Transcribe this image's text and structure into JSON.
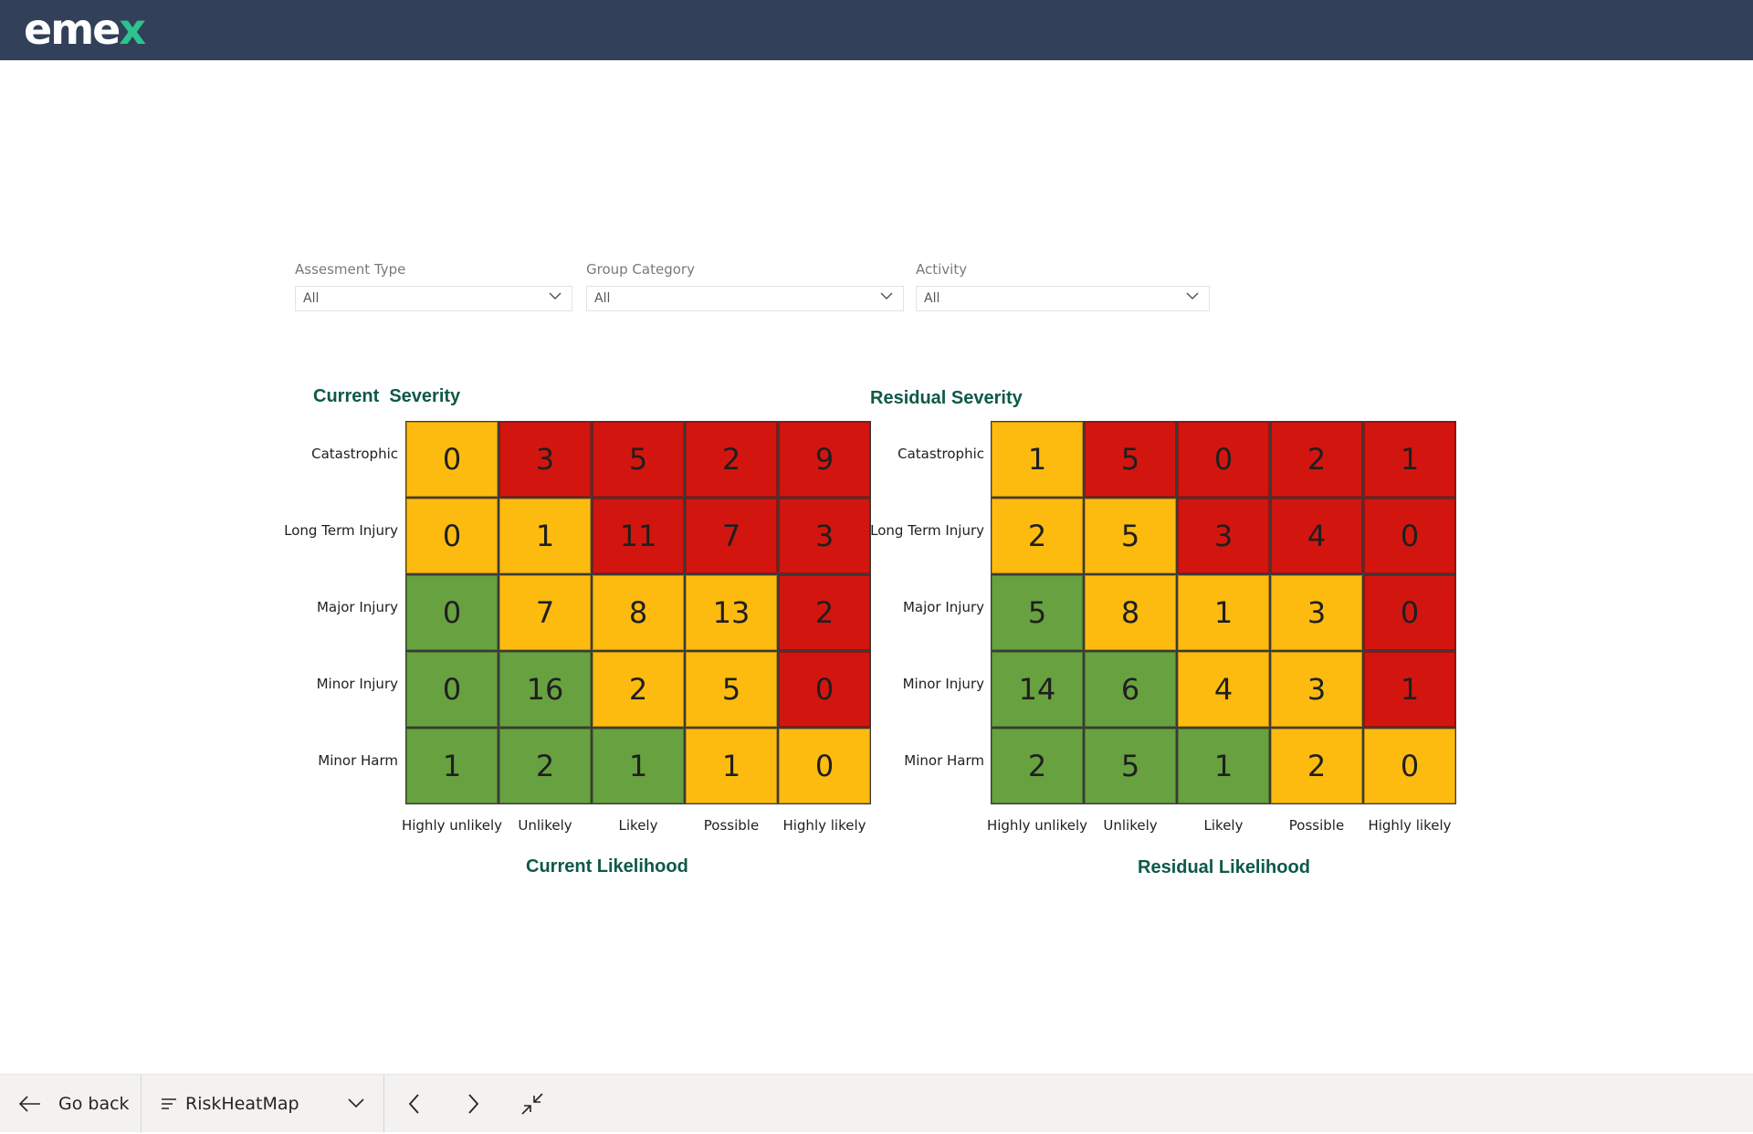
{
  "header": {
    "logo_text_main": "eme",
    "logo_text_accent": "x",
    "colors": {
      "bar": "#334059",
      "accent": "#2bc38e"
    }
  },
  "filters": [
    {
      "label": "Assesment Type",
      "value": "All"
    },
    {
      "label": "Group Category",
      "value": "All"
    },
    {
      "label": "Activity",
      "value": "All"
    }
  ],
  "colors": {
    "red": "#d2160f",
    "amber": "#fdbb0f",
    "green": "#68a140"
  },
  "chart_data": [
    {
      "type": "heatmap",
      "title": "Current  Severity",
      "xlabel": "Current Likelihood",
      "rows": [
        "Catastrophic",
        "Long Term Injury",
        "Major Injury",
        "Minor Injury",
        "Minor Harm"
      ],
      "columns": [
        "Highly unlikely",
        "Unlikely",
        "Likely",
        "Possible",
        "Highly likely"
      ],
      "values": [
        [
          0,
          3,
          5,
          2,
          9
        ],
        [
          0,
          1,
          11,
          7,
          3
        ],
        [
          0,
          7,
          8,
          13,
          2
        ],
        [
          0,
          16,
          2,
          5,
          0
        ],
        [
          1,
          2,
          1,
          1,
          0
        ]
      ],
      "cell_colors": [
        [
          "amber",
          "red",
          "red",
          "red",
          "red"
        ],
        [
          "amber",
          "amber",
          "red",
          "red",
          "red"
        ],
        [
          "green",
          "amber",
          "amber",
          "amber",
          "red"
        ],
        [
          "green",
          "green",
          "amber",
          "amber",
          "red"
        ],
        [
          "green",
          "green",
          "green",
          "amber",
          "amber"
        ]
      ]
    },
    {
      "type": "heatmap",
      "title": "Residual Severity",
      "xlabel": "Residual Likelihood",
      "rows": [
        "Catastrophic",
        "Long Term Injury",
        "Major Injury",
        "Minor Injury",
        "Minor Harm"
      ],
      "columns": [
        "Highly unlikely",
        "Unlikely",
        "Likely",
        "Possible",
        "Highly likely"
      ],
      "values": [
        [
          1,
          5,
          0,
          2,
          1
        ],
        [
          2,
          5,
          3,
          4,
          0
        ],
        [
          5,
          8,
          1,
          3,
          0
        ],
        [
          14,
          6,
          4,
          3,
          1
        ],
        [
          2,
          5,
          1,
          2,
          0
        ]
      ],
      "cell_colors": [
        [
          "amber",
          "red",
          "red",
          "red",
          "red"
        ],
        [
          "amber",
          "amber",
          "red",
          "red",
          "red"
        ],
        [
          "green",
          "amber",
          "amber",
          "amber",
          "red"
        ],
        [
          "green",
          "green",
          "amber",
          "amber",
          "red"
        ],
        [
          "green",
          "green",
          "green",
          "amber",
          "amber"
        ]
      ]
    }
  ],
  "bottombar": {
    "go_back_label": "Go back",
    "page_name": "RiskHeatMap",
    "icons": [
      "arrow-left-icon",
      "page-list-icon",
      "chevron-down-icon",
      "chevron-left-icon",
      "chevron-right-icon",
      "collapse-icon"
    ]
  }
}
